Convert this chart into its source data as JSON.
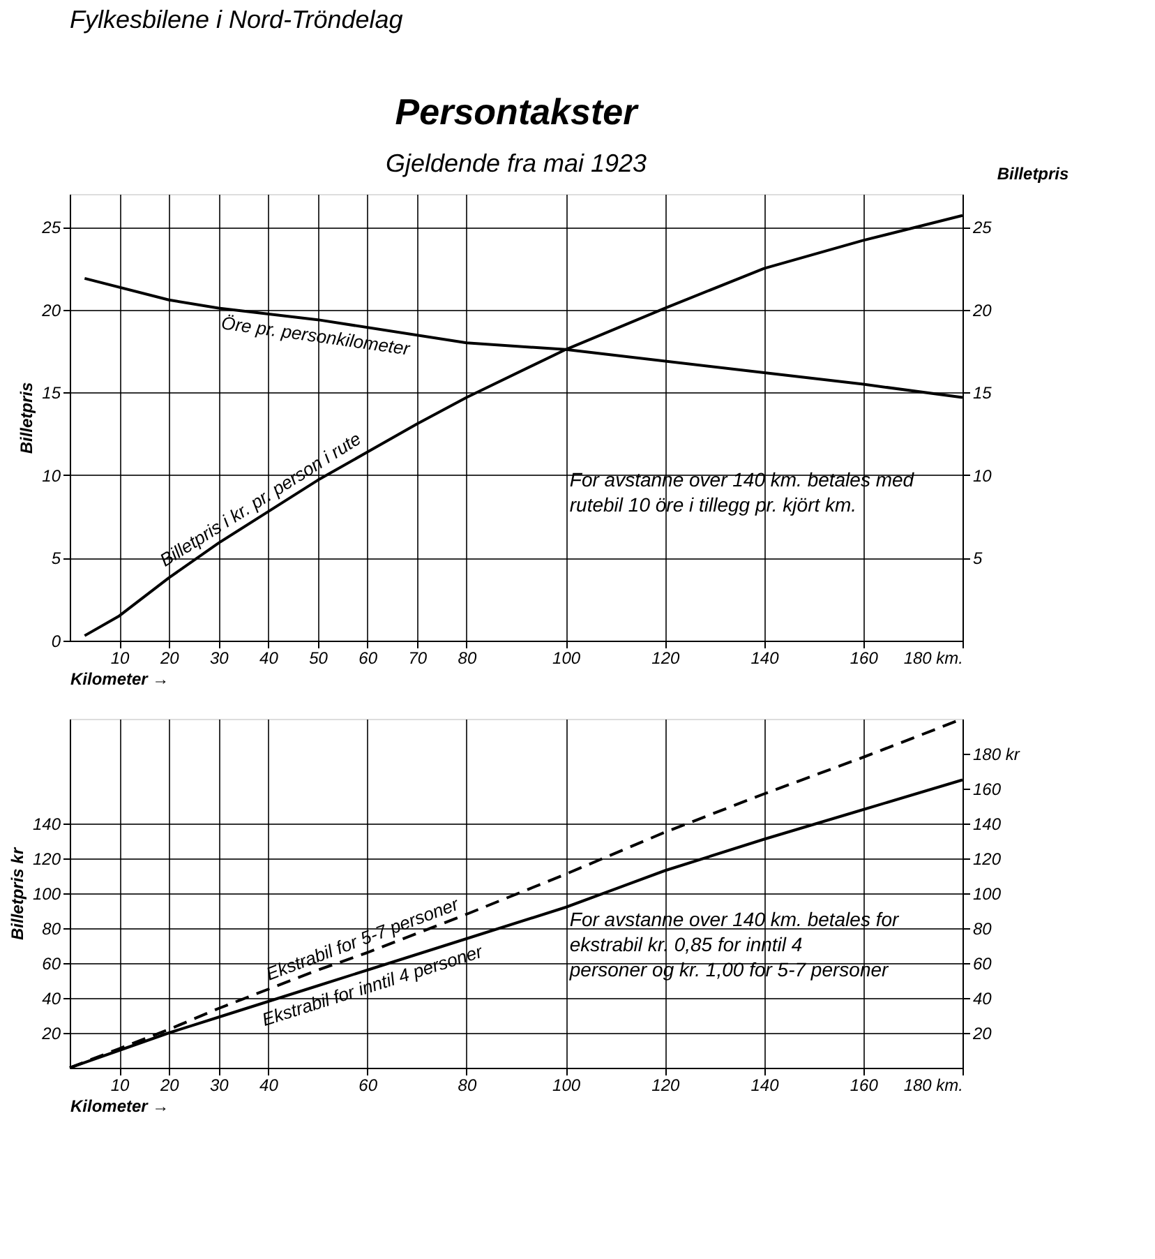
{
  "chart_data": [
    {
      "type": "line",
      "title": "Persontakster",
      "subtitle": "Gjeldende fra mai 1923",
      "xlabel": "Kilometer →",
      "ylabel": "Billetpris",
      "y2label": "Billetpris",
      "annotations": [
        "Fylkesbilene i Nord-Tröndelag",
        "For avstanne over 140 km. betales med rutebil 10 öre i tillegg pr. kjört km."
      ],
      "xlim": [
        0,
        180
      ],
      "xticks": [
        10,
        20,
        30,
        40,
        50,
        60,
        70,
        80,
        100,
        120,
        140,
        160,
        {
          "value": 180,
          "label": "180 km."
        }
      ],
      "ylim": [
        0,
        27
      ],
      "yticks": [
        0,
        5,
        10,
        15,
        20,
        25
      ],
      "y2lim": [
        0,
        27
      ],
      "y2ticks": [
        5,
        10,
        15,
        20,
        25
      ],
      "grid": true,
      "marker": "none",
      "series": [
        {
          "name": "Billetpris i kr. pr. person i rute",
          "color": "#000000",
          "line_style": "solid",
          "x": [
            3,
            10,
            20,
            30,
            40,
            50,
            60,
            70,
            80,
            100,
            120,
            140,
            160,
            180
          ],
          "values": [
            0.3,
            1.5,
            3.8,
            5.9,
            7.8,
            9.7,
            11.4,
            13.1,
            14.7,
            17.6,
            20.1,
            22.5,
            24.2,
            25.7
          ]
        },
        {
          "name": "Öre pr. personkilometer",
          "color": "#000000",
          "line_style": "solid",
          "x": [
            3,
            20,
            30,
            50,
            80,
            100,
            140,
            160,
            180
          ],
          "values": [
            21.9,
            20.6,
            20.1,
            19.4,
            18.0,
            17.6,
            16.2,
            15.5,
            14.7
          ]
        }
      ]
    },
    {
      "type": "line",
      "xlabel": "Kilometer →",
      "ylabel": "Billetpris kr",
      "annotations": [
        "For avstanne over 140 km. betales for ekstrabil kr. 0,85 for inntil 4 personer og kr. 1,00 for 5-7 personer"
      ],
      "xlim": [
        0,
        180
      ],
      "xticks": [
        10,
        20,
        30,
        40,
        60,
        80,
        100,
        120,
        140,
        160,
        {
          "value": 180,
          "label": "180 km."
        }
      ],
      "ylim": [
        0,
        200
      ],
      "yticks": [
        20,
        40,
        60,
        80,
        100,
        120,
        140
      ],
      "y2lim": [
        0,
        200
      ],
      "y2ticks": [
        20,
        40,
        60,
        80,
        100,
        120,
        140,
        160,
        {
          "value": 180,
          "label": "180 kr"
        }
      ],
      "grid": true,
      "marker": "none",
      "series": [
        {
          "name": "Ekstrabil for 5-7 personer",
          "color": "#000000",
          "line_style": "dashed",
          "x": [
            0,
            10,
            20,
            30,
            40,
            50,
            60,
            80,
            100,
            120,
            140,
            160,
            180
          ],
          "values": [
            0,
            11,
            22,
            34,
            45,
            56,
            66,
            88,
            111,
            135,
            157,
            178,
            200
          ]
        },
        {
          "name": "Ekstrabil for inntil 4 personer",
          "color": "#000000",
          "line_style": "solid",
          "x": [
            0,
            10,
            20,
            30,
            40,
            50,
            60,
            80,
            100,
            120,
            140,
            160,
            180
          ],
          "values": [
            0,
            10,
            20,
            29,
            38,
            47,
            56,
            74,
            92,
            113,
            131,
            148,
            165
          ]
        }
      ]
    }
  ]
}
